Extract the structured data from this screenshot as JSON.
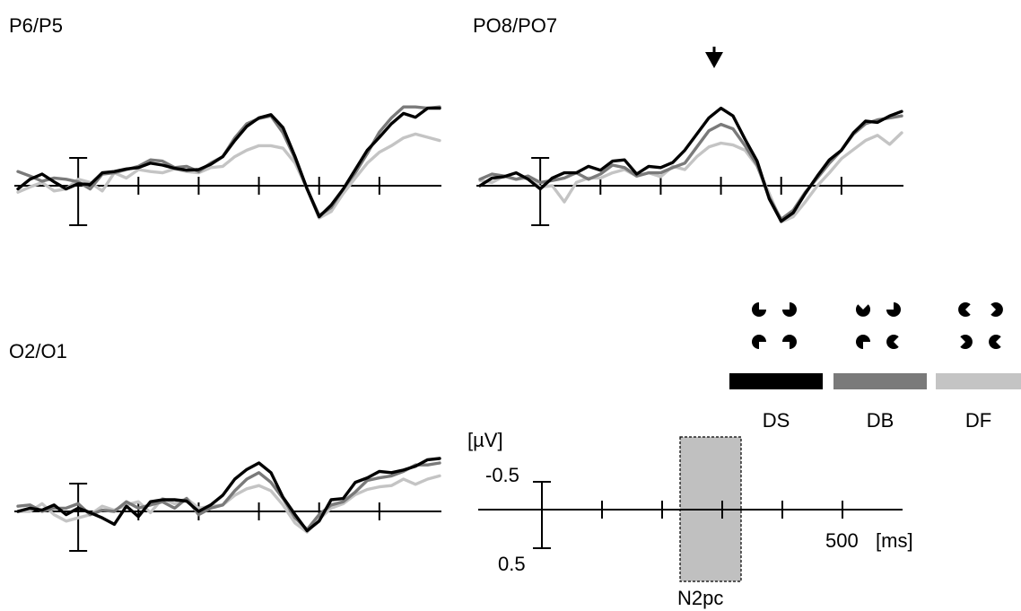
{
  "colors": {
    "DS": "#000000",
    "DB": "#7a7a7a",
    "DF": "#c4c4c4",
    "window": "#c0c0c0"
  },
  "legend": {
    "items": [
      "DS",
      "DB",
      "DF"
    ],
    "icons": [
      "pacman-inducers-square-icon",
      "pacman-inducers-bent-icon",
      "pacman-inducers-outward-icon"
    ]
  },
  "scale": {
    "unit_amp": "[µV]",
    "neg": "-0.5",
    "pos": "0.5",
    "time_label": "500",
    "time_unit": "[ms]",
    "window_label": "N2pc",
    "window_ms": [
      225,
      325
    ]
  },
  "marker": {
    "latency_ms": 300,
    "icon": "arrow-down-icon"
  },
  "chart_data": [
    {
      "type": "line",
      "title": "P6/P5",
      "xlim": [
        -100,
        600
      ],
      "ylim": [
        -1.3,
        0.5
      ],
      "y_inverted": true,
      "grid": false,
      "x": [
        -100,
        -80,
        -60,
        -40,
        -20,
        0,
        20,
        40,
        60,
        80,
        100,
        120,
        140,
        160,
        180,
        200,
        220,
        240,
        260,
        280,
        300,
        320,
        340,
        360,
        380,
        400,
        420,
        440,
        460,
        480,
        500,
        520,
        540,
        560,
        580,
        600
      ],
      "series": [
        {
          "name": "DS",
          "values": [
            0.05,
            -0.1,
            -0.18,
            -0.06,
            0.05,
            -0.03,
            -0.02,
            -0.2,
            -0.22,
            -0.26,
            -0.28,
            -0.35,
            -0.32,
            -0.27,
            -0.24,
            -0.25,
            -0.33,
            -0.45,
            -0.7,
            -0.92,
            -1.05,
            -1.1,
            -0.9,
            -0.45,
            0.05,
            0.48,
            0.3,
            0.05,
            -0.25,
            -0.55,
            -0.75,
            -0.96,
            -1.12,
            -1.06,
            -1.2,
            -1.2
          ]
        },
        {
          "name": "DB",
          "values": [
            -0.22,
            -0.15,
            -0.07,
            -0.12,
            -0.1,
            -0.06,
            0.05,
            -0.18,
            -0.2,
            -0.25,
            -0.3,
            -0.4,
            -0.38,
            -0.28,
            -0.3,
            -0.22,
            -0.35,
            -0.45,
            -0.74,
            -0.96,
            -1.04,
            -1.08,
            -0.82,
            -0.42,
            0.05,
            0.46,
            0.34,
            0.05,
            -0.2,
            -0.5,
            -0.83,
            -1.05,
            -1.22,
            -1.22,
            -1.2,
            -1.22
          ]
        },
        {
          "name": "DF",
          "values": [
            0.1,
            0.02,
            -0.05,
            0.08,
            0.05,
            -0.1,
            -0.05,
            0.08,
            -0.2,
            -0.12,
            -0.25,
            -0.22,
            -0.2,
            -0.26,
            -0.22,
            -0.2,
            -0.28,
            -0.3,
            -0.45,
            -0.55,
            -0.62,
            -0.62,
            -0.58,
            -0.35,
            0.05,
            0.5,
            0.4,
            0.12,
            -0.12,
            -0.35,
            -0.52,
            -0.62,
            -0.74,
            -0.8,
            -0.75,
            -0.7
          ]
        }
      ]
    },
    {
      "type": "line",
      "title": "PO8/PO7",
      "xlim": [
        -100,
        600
      ],
      "ylim": [
        -1.3,
        0.5
      ],
      "y_inverted": true,
      "grid": false,
      "x": [
        -100,
        -80,
        -60,
        -40,
        -20,
        0,
        20,
        40,
        60,
        80,
        100,
        120,
        140,
        160,
        180,
        200,
        220,
        240,
        260,
        280,
        300,
        320,
        340,
        360,
        380,
        400,
        420,
        440,
        460,
        480,
        500,
        520,
        540,
        560,
        580,
        600
      ],
      "series": [
        {
          "name": "DS",
          "values": [
            0.0,
            -0.12,
            -0.14,
            -0.2,
            -0.1,
            0.05,
            -0.12,
            -0.2,
            -0.2,
            -0.3,
            -0.24,
            -0.38,
            -0.4,
            -0.18,
            -0.3,
            -0.28,
            -0.36,
            -0.55,
            -0.8,
            -1.05,
            -1.2,
            -1.08,
            -0.72,
            -0.38,
            0.2,
            0.55,
            0.42,
            0.12,
            -0.15,
            -0.4,
            -0.55,
            -0.82,
            -1.0,
            -0.98,
            -1.08,
            -1.15
          ]
        },
        {
          "name": "DB",
          "values": [
            -0.1,
            -0.18,
            -0.15,
            -0.1,
            -0.15,
            -0.05,
            -0.08,
            -0.12,
            -0.2,
            -0.1,
            -0.18,
            -0.32,
            -0.28,
            -0.15,
            -0.2,
            -0.2,
            -0.28,
            -0.35,
            -0.6,
            -0.85,
            -0.95,
            -0.88,
            -0.62,
            -0.32,
            0.18,
            0.52,
            0.38,
            0.1,
            -0.12,
            -0.35,
            -0.55,
            -0.8,
            -0.96,
            -1.02,
            -1.05,
            -1.08
          ]
        },
        {
          "name": "DF",
          "values": [
            -0.08,
            -0.05,
            -0.15,
            -0.1,
            -0.12,
            0.02,
            0.0,
            0.25,
            -0.05,
            -0.12,
            -0.12,
            -0.2,
            -0.25,
            -0.15,
            -0.2,
            -0.14,
            -0.3,
            -0.25,
            -0.45,
            -0.6,
            -0.66,
            -0.63,
            -0.55,
            -0.3,
            0.12,
            0.56,
            0.48,
            0.25,
            0.0,
            -0.2,
            -0.42,
            -0.56,
            -0.7,
            -0.78,
            -0.64,
            -0.82
          ]
        }
      ]
    },
    {
      "type": "line",
      "title": "O2/O1",
      "xlim": [
        -100,
        600
      ],
      "ylim": [
        -1.3,
        0.5
      ],
      "y_inverted": true,
      "grid": false,
      "x": [
        -100,
        -80,
        -60,
        -40,
        -20,
        0,
        20,
        40,
        60,
        80,
        100,
        120,
        140,
        160,
        180,
        200,
        220,
        240,
        260,
        280,
        300,
        320,
        340,
        360,
        380,
        400,
        420,
        440,
        460,
        480,
        500,
        520,
        540,
        560,
        580,
        600
      ],
      "series": [
        {
          "name": "DS",
          "values": [
            0.0,
            -0.05,
            -0.02,
            -0.1,
            0.05,
            -0.05,
            0.02,
            0.1,
            0.2,
            -0.08,
            0.08,
            -0.15,
            -0.18,
            -0.18,
            -0.16,
            0.0,
            -0.1,
            -0.25,
            -0.5,
            -0.65,
            -0.75,
            -0.6,
            -0.22,
            0.05,
            0.3,
            0.15,
            -0.18,
            -0.2,
            -0.45,
            -0.52,
            -0.62,
            -0.6,
            -0.64,
            -0.7,
            -0.8,
            -0.82
          ]
        },
        {
          "name": "DB",
          "values": [
            -0.08,
            -0.1,
            0.0,
            -0.05,
            -0.05,
            -0.12,
            0.05,
            -0.02,
            0.0,
            -0.15,
            -0.05,
            -0.1,
            -0.15,
            -0.05,
            -0.2,
            0.05,
            -0.05,
            -0.1,
            -0.32,
            -0.5,
            -0.6,
            -0.45,
            -0.2,
            0.1,
            0.28,
            0.05,
            -0.1,
            -0.15,
            -0.3,
            -0.48,
            -0.52,
            -0.55,
            -0.62,
            -0.72,
            -0.72,
            -0.75
          ]
        },
        {
          "name": "DF",
          "values": [
            0.0,
            0.0,
            -0.12,
            0.05,
            0.15,
            0.1,
            0.05,
            -0.08,
            -0.02,
            -0.1,
            -0.15,
            0.02,
            -0.2,
            -0.12,
            -0.2,
            -0.05,
            -0.08,
            -0.1,
            -0.25,
            -0.35,
            -0.4,
            -0.32,
            -0.1,
            0.18,
            0.32,
            0.12,
            -0.05,
            -0.12,
            -0.26,
            -0.34,
            -0.38,
            -0.4,
            -0.5,
            -0.42,
            -0.5,
            -0.55
          ]
        }
      ]
    }
  ]
}
